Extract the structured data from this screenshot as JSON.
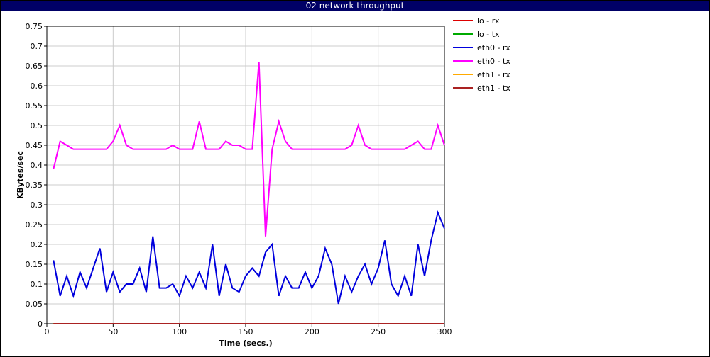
{
  "window": {
    "title": "02 network throughput"
  },
  "chart_data": {
    "type": "line",
    "title": "",
    "xlabel": "Time (secs.)",
    "ylabel": "KBytes/sec",
    "xlim": [
      0,
      300
    ],
    "ylim": [
      0,
      0.75
    ],
    "xticks": [
      0,
      50,
      100,
      150,
      200,
      250,
      300
    ],
    "yticks": [
      0,
      0.05,
      0.1,
      0.15,
      0.2,
      0.25,
      0.3,
      0.35,
      0.4,
      0.45,
      0.5,
      0.55,
      0.6,
      0.65,
      0.7,
      0.75
    ],
    "grid": true,
    "legend_position": "right",
    "x": [
      5,
      10,
      15,
      20,
      25,
      30,
      35,
      40,
      45,
      50,
      55,
      60,
      65,
      70,
      75,
      80,
      85,
      90,
      95,
      100,
      105,
      110,
      115,
      120,
      125,
      130,
      135,
      140,
      145,
      150,
      155,
      160,
      165,
      170,
      175,
      180,
      185,
      190,
      195,
      200,
      205,
      210,
      215,
      220,
      225,
      230,
      235,
      240,
      245,
      250,
      255,
      260,
      265,
      270,
      275,
      280,
      285,
      290,
      295,
      300
    ],
    "series": [
      {
        "name": "lo - rx",
        "color": "#dd0000",
        "values": [
          0,
          0,
          0,
          0,
          0,
          0,
          0,
          0,
          0,
          0,
          0,
          0,
          0,
          0,
          0,
          0,
          0,
          0,
          0,
          0,
          0,
          0,
          0,
          0,
          0,
          0,
          0,
          0,
          0,
          0,
          0,
          0,
          0,
          0,
          0,
          0,
          0,
          0,
          0,
          0,
          0,
          0,
          0,
          0,
          0,
          0,
          0,
          0,
          0,
          0,
          0,
          0,
          0,
          0,
          0,
          0,
          0,
          0,
          0,
          0
        ]
      },
      {
        "name": "lo - tx",
        "color": "#00aa00",
        "values": [
          0,
          0,
          0,
          0,
          0,
          0,
          0,
          0,
          0,
          0,
          0,
          0,
          0,
          0,
          0,
          0,
          0,
          0,
          0,
          0,
          0,
          0,
          0,
          0,
          0,
          0,
          0,
          0,
          0,
          0,
          0,
          0,
          0,
          0,
          0,
          0,
          0,
          0,
          0,
          0,
          0,
          0,
          0,
          0,
          0,
          0,
          0,
          0,
          0,
          0,
          0,
          0,
          0,
          0,
          0,
          0,
          0,
          0,
          0,
          0
        ]
      },
      {
        "name": "eth0 - rx",
        "color": "#0000dd",
        "values": [
          0.16,
          0.07,
          0.12,
          0.07,
          0.13,
          0.09,
          0.14,
          0.19,
          0.08,
          0.13,
          0.08,
          0.1,
          0.1,
          0.14,
          0.08,
          0.22,
          0.09,
          0.09,
          0.1,
          0.07,
          0.12,
          0.09,
          0.13,
          0.09,
          0.2,
          0.07,
          0.15,
          0.09,
          0.08,
          0.12,
          0.14,
          0.12,
          0.18,
          0.2,
          0.07,
          0.12,
          0.09,
          0.09,
          0.13,
          0.09,
          0.12,
          0.19,
          0.15,
          0.05,
          0.12,
          0.08,
          0.12,
          0.15,
          0.1,
          0.14,
          0.21,
          0.1,
          0.07,
          0.12,
          0.07,
          0.2,
          0.12,
          0.21,
          0.28,
          0.24
        ]
      },
      {
        "name": "eth0 - tx",
        "color": "#ff00ff",
        "values": [
          0.39,
          0.46,
          0.45,
          0.44,
          0.44,
          0.44,
          0.44,
          0.44,
          0.44,
          0.46,
          0.5,
          0.45,
          0.44,
          0.44,
          0.44,
          0.44,
          0.44,
          0.44,
          0.45,
          0.44,
          0.44,
          0.44,
          0.51,
          0.44,
          0.44,
          0.44,
          0.46,
          0.45,
          0.45,
          0.44,
          0.44,
          0.66,
          0.22,
          0.44,
          0.51,
          0.46,
          0.44,
          0.44,
          0.44,
          0.44,
          0.44,
          0.44,
          0.44,
          0.44,
          0.44,
          0.45,
          0.5,
          0.45,
          0.44,
          0.44,
          0.44,
          0.44,
          0.44,
          0.44,
          0.45,
          0.46,
          0.44,
          0.44,
          0.5,
          0.45
        ]
      },
      {
        "name": "eth1 - rx",
        "color": "#ffaa00",
        "values": [
          0,
          0,
          0,
          0,
          0,
          0,
          0,
          0,
          0,
          0,
          0,
          0,
          0,
          0,
          0,
          0,
          0,
          0,
          0,
          0,
          0,
          0,
          0,
          0,
          0,
          0,
          0,
          0,
          0,
          0,
          0,
          0,
          0,
          0,
          0,
          0,
          0,
          0,
          0,
          0,
          0,
          0,
          0,
          0,
          0,
          0,
          0,
          0,
          0,
          0,
          0,
          0,
          0,
          0,
          0,
          0,
          0,
          0,
          0,
          0
        ]
      },
      {
        "name": "eth1 - tx",
        "color": "#aa2222",
        "values": [
          0,
          0,
          0,
          0,
          0,
          0,
          0,
          0,
          0,
          0,
          0,
          0,
          0,
          0,
          0,
          0,
          0,
          0,
          0,
          0,
          0,
          0,
          0,
          0,
          0,
          0,
          0,
          0,
          0,
          0,
          0,
          0,
          0,
          0,
          0,
          0,
          0,
          0,
          0,
          0,
          0,
          0,
          0,
          0,
          0,
          0,
          0,
          0,
          0,
          0,
          0,
          0,
          0,
          0,
          0,
          0,
          0,
          0,
          0,
          0
        ]
      }
    ]
  }
}
